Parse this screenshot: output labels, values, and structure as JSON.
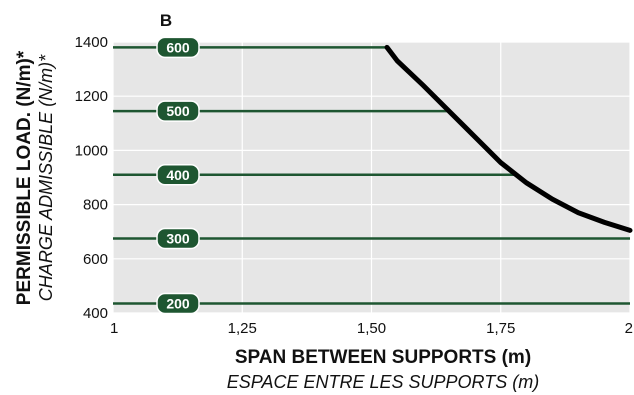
{
  "chart_data": {
    "type": "line",
    "panel_label": "B",
    "ylabel": "PERMISSIBLE LOAD. (N/m)*",
    "ylabel_secondary": "CHARGE ADMISSIBLE (N/m)*",
    "xlabel": "SPAN BETWEEN SUPPORTS (m)",
    "xlabel_secondary": "ESPACE ENTRE LES SUPPORTS (m)",
    "xlim": [
      1,
      2
    ],
    "ylim": [
      400,
      1400
    ],
    "x_ticks": [
      {
        "value": 1,
        "label": "1"
      },
      {
        "value": 1.25,
        "label": "1,25"
      },
      {
        "value": 1.5,
        "label": "1,50"
      },
      {
        "value": 1.75,
        "label": "1,75"
      },
      {
        "value": 2,
        "label": "2"
      }
    ],
    "y_ticks": [
      {
        "value": 400,
        "label": "400"
      },
      {
        "value": 600,
        "label": "600"
      },
      {
        "value": 800,
        "label": "800"
      },
      {
        "value": 1000,
        "label": "1000"
      },
      {
        "value": 1200,
        "label": "1200"
      },
      {
        "value": 1400,
        "label": "1400"
      }
    ],
    "grid": true,
    "colors": {
      "background": "#e6e6e6",
      "curve": "#000000",
      "levels": "#1e5631",
      "badge": "#1e5631"
    },
    "curve": {
      "x": [
        1.53,
        1.55,
        1.6,
        1.65,
        1.7,
        1.75,
        1.8,
        1.85,
        1.9,
        1.95,
        2.0
      ],
      "y": [
        1380,
        1330,
        1240,
        1145,
        1050,
        955,
        880,
        820,
        770,
        735,
        705
      ]
    },
    "levels": [
      {
        "label": "600",
        "y": 1380
      },
      {
        "label": "500",
        "y": 1145
      },
      {
        "label": "400",
        "y": 910
      },
      {
        "label": "300",
        "y": 675
      },
      {
        "label": "200",
        "y": 435
      }
    ]
  }
}
